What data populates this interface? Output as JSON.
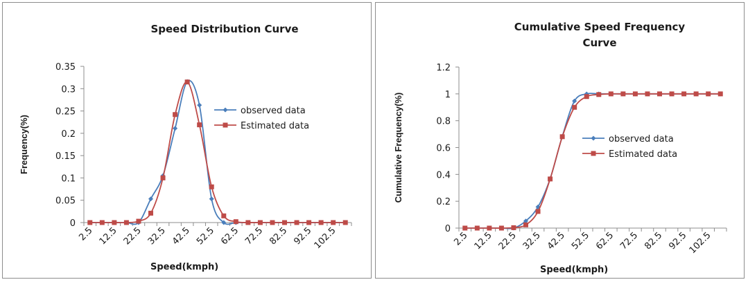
{
  "colors": {
    "observed": "#4a7ebb",
    "estimated": "#be4b48",
    "axis": "#8c8c8c"
  },
  "chart_data": [
    {
      "type": "line",
      "title": "Speed Distribution Curve",
      "xlabel": "Speed(kmph)",
      "ylabel": "Frequency(%)",
      "ylim": [
        0,
        0.35
      ],
      "yticks": [
        "0",
        "0.05",
        "0.1",
        "0.15",
        "0.2",
        "0.25",
        "0.3",
        "0.35"
      ],
      "x": [
        2.5,
        7.5,
        12.5,
        17.5,
        22.5,
        27.5,
        32.5,
        37.5,
        42.5,
        47.5,
        52.5,
        57.5,
        62.5,
        67.5,
        72.5,
        77.5,
        82.5,
        87.5,
        92.5,
        97.5,
        102.5,
        107.5
      ],
      "xtick_labels": [
        "2.5",
        "12.5",
        "22.5",
        "32.5",
        "42.5",
        "52.5",
        "62.5",
        "72.5",
        "82.5",
        "92.5",
        "102.5"
      ],
      "legend": "right",
      "series": [
        {
          "name": "observed data",
          "marker": "diamond",
          "values": [
            0,
            0,
            0,
            0,
            0,
            0.053,
            0.105,
            0.211,
            0.316,
            0.263,
            0.053,
            0,
            0,
            0,
            0,
            0,
            0,
            0,
            0,
            0,
            0,
            0
          ]
        },
        {
          "name": "Estimated data",
          "marker": "square",
          "values": [
            0,
            0,
            0,
            0,
            0.003,
            0.021,
            0.1,
            0.242,
            0.315,
            0.219,
            0.08,
            0.015,
            0.002,
            0,
            0,
            0,
            0,
            0,
            0,
            0,
            0,
            0
          ]
        }
      ]
    },
    {
      "type": "line",
      "title": "Cumulative Speed Frequency Curve",
      "title_lines": [
        "Cumulative Speed Frequency",
        "Curve"
      ],
      "xlabel": "Speed(kmph)",
      "ylabel": "Cumulative Frequency(%)",
      "ylim": [
        0,
        1.2
      ],
      "yticks": [
        "0",
        "0.2",
        "0.4",
        "0.6",
        "0.8",
        "1",
        "1.2"
      ],
      "x": [
        2.5,
        7.5,
        12.5,
        17.5,
        22.5,
        27.5,
        32.5,
        37.5,
        42.5,
        47.5,
        52.5,
        57.5,
        62.5,
        67.5,
        72.5,
        77.5,
        82.5,
        87.5,
        92.5,
        97.5,
        102.5,
        107.5
      ],
      "xtick_labels": [
        "2.5",
        "12.5",
        "22.5",
        "32.5",
        "42.5",
        "52.5",
        "62.5",
        "72.5",
        "82.5",
        "92.5",
        "102.5"
      ],
      "legend": "right",
      "series": [
        {
          "name": "observed data",
          "marker": "diamond",
          "values": [
            0,
            0,
            0,
            0,
            0,
            0.053,
            0.158,
            0.368,
            0.684,
            0.947,
            1,
            1,
            1,
            1,
            1,
            1,
            1,
            1,
            1,
            1,
            1,
            1
          ]
        },
        {
          "name": "Estimated data",
          "marker": "square",
          "values": [
            0,
            0,
            0,
            0,
            0.003,
            0.024,
            0.124,
            0.366,
            0.681,
            0.9,
            0.98,
            0.995,
            1,
            1,
            1,
            1,
            1,
            1,
            1,
            1,
            1,
            1
          ]
        }
      ]
    }
  ]
}
